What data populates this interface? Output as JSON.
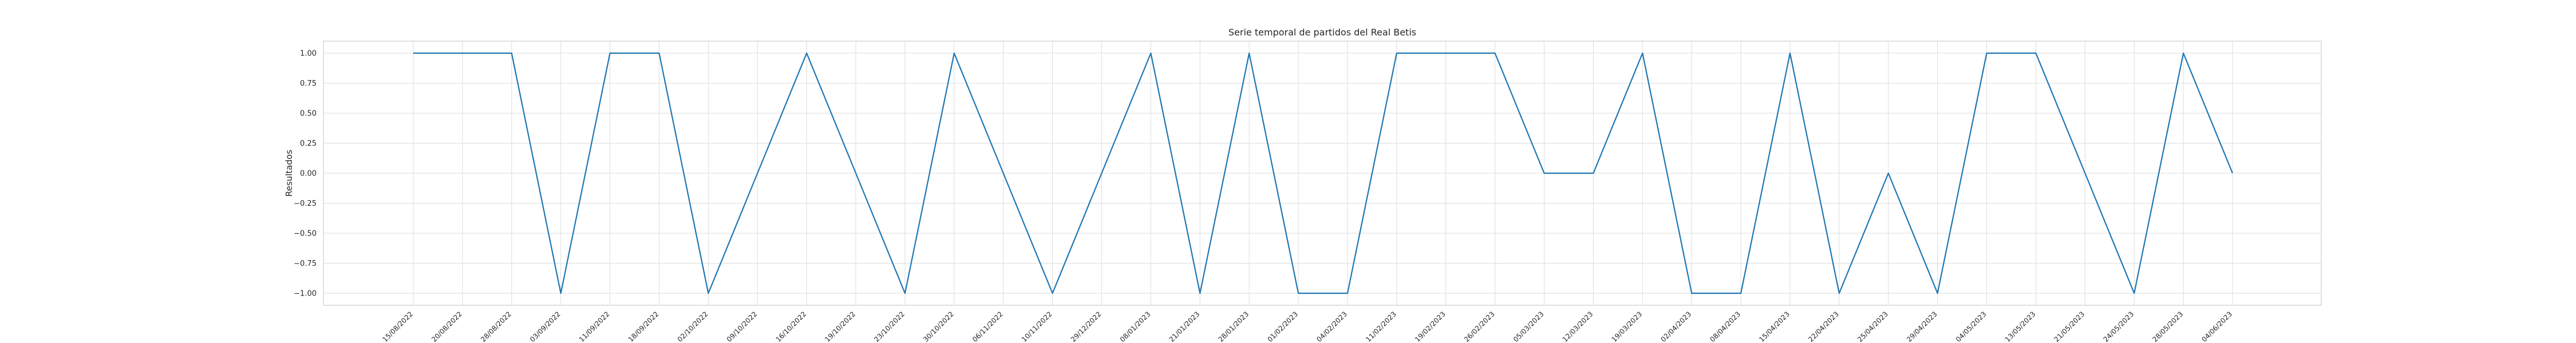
{
  "chart_data": {
    "type": "line",
    "title": "Serie temporal de partidos del Real Betis",
    "xlabel": "",
    "ylabel": "Resultados",
    "ylim": [
      -1.1,
      1.1
    ],
    "yticks": [
      "1.00",
      "0.75",
      "0.50",
      "0.25",
      "0.00",
      "−0.25",
      "−0.50",
      "−0.75",
      "−1.00"
    ],
    "ytick_values": [
      1.0,
      0.75,
      0.5,
      0.25,
      0.0,
      -0.25,
      -0.5,
      -0.75,
      -1.0
    ],
    "grid": true,
    "color": "#1f77b4",
    "x": [
      "15/08/2022",
      "20/08/2022",
      "28/08/2022",
      "03/09/2022",
      "11/09/2022",
      "18/09/2022",
      "02/10/2022",
      "09/10/2022",
      "16/10/2022",
      "19/10/2022",
      "23/10/2022",
      "30/10/2022",
      "06/11/2022",
      "10/11/2022",
      "29/12/2022",
      "08/01/2023",
      "21/01/2023",
      "28/01/2023",
      "01/02/2023",
      "04/02/2023",
      "11/02/2023",
      "19/02/2023",
      "26/02/2023",
      "05/03/2023",
      "12/03/2023",
      "19/03/2023",
      "02/04/2023",
      "08/04/2023",
      "15/04/2023",
      "22/04/2023",
      "25/04/2023",
      "29/04/2023",
      "04/05/2023",
      "13/05/2023",
      "21/05/2023",
      "24/05/2023",
      "28/05/2023",
      "04/06/2023"
    ],
    "series": [
      {
        "values": [
          1,
          1,
          1,
          -1,
          1,
          1,
          -1,
          0,
          1,
          0,
          -1,
          1,
          0,
          -1,
          0,
          1,
          -1,
          1,
          -1,
          -1,
          1,
          1,
          1,
          0,
          0,
          1,
          -1,
          -1,
          1,
          -1,
          0,
          -1,
          1,
          1,
          0,
          -1,
          1,
          0
        ]
      }
    ]
  }
}
